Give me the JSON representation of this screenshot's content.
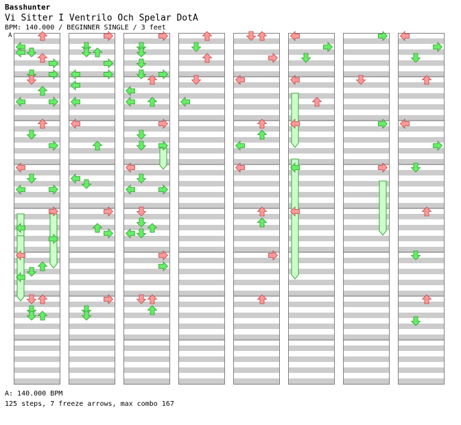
{
  "song": {
    "artist": "Basshunter",
    "title": "Vi Sitter I Ventrilo Och Spelar DotA",
    "info": "BPM: 140.000 / BEGINNER SINGLE / 3 feet"
  },
  "bpm_marker": {
    "label": "A"
  },
  "footer": {
    "bpm_line": "A: 140.000 BPM",
    "stats": "125 steps, 7 freeze arrows, max combo 167"
  },
  "colors": {
    "quarter": "#ff9a9a",
    "eighth": "#66ee66",
    "freeze": "#ccffcc",
    "stripe": "#cccccc",
    "border": "#808080"
  },
  "chart_data": {
    "type": "step_chart",
    "columns": 8,
    "measures_per_column": 8,
    "lanes": [
      "left",
      "down",
      "up",
      "right"
    ],
    "total_measures": 64,
    "steps": [
      [
        0,
        0,
        2,
        "quarter"
      ],
      [
        0,
        2,
        0,
        "eighth"
      ],
      [
        0,
        3,
        0,
        "eighth"
      ],
      [
        0,
        3,
        1,
        "eighth"
      ],
      [
        0,
        4,
        2,
        "quarter"
      ],
      [
        0,
        5,
        3,
        "eighth"
      ],
      [
        0,
        7,
        1,
        "eighth"
      ],
      [
        0,
        7,
        3,
        "eighth"
      ],
      [
        0,
        8,
        1,
        "quarter"
      ],
      [
        0,
        10,
        2,
        "eighth"
      ],
      [
        0,
        12,
        0,
        "eighth"
      ],
      [
        0,
        12,
        3,
        "eighth"
      ],
      [
        0,
        16,
        2,
        "quarter"
      ],
      [
        0,
        18,
        1,
        "eighth"
      ],
      [
        0,
        20,
        3,
        "eighth"
      ],
      [
        0,
        24,
        0,
        "quarter"
      ],
      [
        0,
        26,
        1,
        "eighth"
      ],
      [
        0,
        28,
        0,
        "eighth"
      ],
      [
        0,
        28,
        3,
        "eighth"
      ],
      [
        0,
        32,
        3,
        "quarter"
      ],
      [
        0,
        35,
        0,
        "eighth"
      ],
      [
        0,
        37,
        3,
        "eighth"
      ],
      [
        0,
        40,
        0,
        "quarter"
      ],
      [
        0,
        42,
        2,
        "eighth"
      ],
      [
        0,
        43,
        1,
        "eighth"
      ],
      [
        0,
        44,
        0,
        "eighth"
      ],
      [
        0,
        48,
        1,
        "quarter"
      ],
      [
        0,
        48,
        2,
        "quarter"
      ],
      [
        0,
        50,
        1,
        "eighth"
      ],
      [
        0,
        51,
        1,
        "eighth"
      ],
      [
        0,
        51,
        2,
        "eighth"
      ],
      [
        1,
        0,
        3,
        "quarter"
      ],
      [
        1,
        2,
        1,
        "eighth"
      ],
      [
        1,
        3,
        1,
        "eighth"
      ],
      [
        1,
        3,
        2,
        "eighth"
      ],
      [
        1,
        5,
        3,
        "eighth"
      ],
      [
        1,
        7,
        0,
        "eighth"
      ],
      [
        1,
        7,
        3,
        "eighth"
      ],
      [
        1,
        9,
        0,
        "eighth"
      ],
      [
        1,
        12,
        0,
        "eighth"
      ],
      [
        1,
        16,
        0,
        "quarter"
      ],
      [
        1,
        20,
        2,
        "eighth"
      ],
      [
        1,
        26,
        0,
        "eighth"
      ],
      [
        1,
        27,
        1,
        "eighth"
      ],
      [
        1,
        32,
        3,
        "quarter"
      ],
      [
        1,
        35,
        2,
        "eighth"
      ],
      [
        1,
        36,
        3,
        "eighth"
      ],
      [
        1,
        48,
        3,
        "quarter"
      ],
      [
        1,
        50,
        1,
        "eighth"
      ],
      [
        1,
        51,
        1,
        "eighth"
      ],
      [
        2,
        0,
        3,
        "quarter"
      ],
      [
        2,
        2,
        1,
        "eighth"
      ],
      [
        2,
        3,
        1,
        "eighth"
      ],
      [
        2,
        5,
        1,
        "eighth"
      ],
      [
        2,
        7,
        1,
        "eighth"
      ],
      [
        2,
        7,
        3,
        "eighth"
      ],
      [
        2,
        8,
        2,
        "quarter"
      ],
      [
        2,
        10,
        0,
        "eighth"
      ],
      [
        2,
        12,
        0,
        "eighth"
      ],
      [
        2,
        12,
        2,
        "eighth"
      ],
      [
        2,
        16,
        3,
        "quarter"
      ],
      [
        2,
        18,
        1,
        "eighth"
      ],
      [
        2,
        20,
        1,
        "eighth"
      ],
      [
        2,
        20,
        3,
        "eighth"
      ],
      [
        2,
        24,
        0,
        "quarter"
      ],
      [
        2,
        26,
        1,
        "eighth"
      ],
      [
        2,
        28,
        0,
        "eighth"
      ],
      [
        2,
        28,
        3,
        "eighth"
      ],
      [
        2,
        32,
        1,
        "quarter"
      ],
      [
        2,
        34,
        1,
        "eighth"
      ],
      [
        2,
        35,
        2,
        "eighth"
      ],
      [
        2,
        36,
        0,
        "eighth"
      ],
      [
        2,
        36,
        1,
        "eighth"
      ],
      [
        2,
        40,
        3,
        "quarter"
      ],
      [
        2,
        42,
        3,
        "eighth"
      ],
      [
        2,
        48,
        1,
        "quarter"
      ],
      [
        2,
        48,
        2,
        "quarter"
      ],
      [
        2,
        50,
        2,
        "eighth"
      ],
      [
        3,
        0,
        2,
        "quarter"
      ],
      [
        3,
        2,
        1,
        "eighth"
      ],
      [
        3,
        4,
        2,
        "quarter"
      ],
      [
        3,
        8,
        1,
        "quarter"
      ],
      [
        3,
        12,
        0,
        "eighth"
      ],
      [
        4,
        0,
        1,
        "quarter"
      ],
      [
        4,
        0,
        2,
        "quarter"
      ],
      [
        4,
        4,
        3,
        "quarter"
      ],
      [
        4,
        8,
        0,
        "quarter"
      ],
      [
        4,
        16,
        2,
        "quarter"
      ],
      [
        4,
        18,
        2,
        "eighth"
      ],
      [
        4,
        20,
        0,
        "eighth"
      ],
      [
        4,
        24,
        0,
        "quarter"
      ],
      [
        4,
        32,
        2,
        "quarter"
      ],
      [
        4,
        34,
        2,
        "eighth"
      ],
      [
        4,
        40,
        3,
        "quarter"
      ],
      [
        4,
        48,
        2,
        "quarter"
      ],
      [
        5,
        0,
        0,
        "quarter"
      ],
      [
        5,
        2,
        3,
        "eighth"
      ],
      [
        5,
        4,
        1,
        "eighth"
      ],
      [
        5,
        8,
        0,
        "quarter"
      ],
      [
        5,
        12,
        2,
        "quarter"
      ],
      [
        5,
        16,
        0,
        "quarter"
      ],
      [
        5,
        24,
        0,
        "eighth"
      ],
      [
        5,
        32,
        0,
        "quarter"
      ],
      [
        6,
        0,
        3,
        "eighth"
      ],
      [
        6,
        8,
        1,
        "quarter"
      ],
      [
        6,
        16,
        3,
        "eighth"
      ],
      [
        6,
        24,
        3,
        "quarter"
      ],
      [
        7,
        0,
        0,
        "quarter"
      ],
      [
        7,
        2,
        3,
        "eighth"
      ],
      [
        7,
        4,
        1,
        "eighth"
      ],
      [
        7,
        8,
        2,
        "quarter"
      ],
      [
        7,
        16,
        0,
        "quarter"
      ],
      [
        7,
        20,
        3,
        "eighth"
      ],
      [
        7,
        24,
        1,
        "eighth"
      ],
      [
        7,
        32,
        2,
        "quarter"
      ],
      [
        7,
        40,
        1,
        "eighth"
      ],
      [
        7,
        48,
        2,
        "quarter"
      ],
      [
        7,
        52,
        1,
        "eighth"
      ]
    ],
    "freezes": [
      [
        0,
        32,
        0,
        46
      ],
      [
        0,
        32,
        3,
        42
      ],
      [
        0,
        36,
        0,
        48
      ],
      [
        2,
        20,
        3,
        24
      ],
      [
        5,
        10,
        0,
        20
      ],
      [
        5,
        22,
        0,
        44
      ],
      [
        6,
        26,
        3,
        36
      ]
    ]
  }
}
